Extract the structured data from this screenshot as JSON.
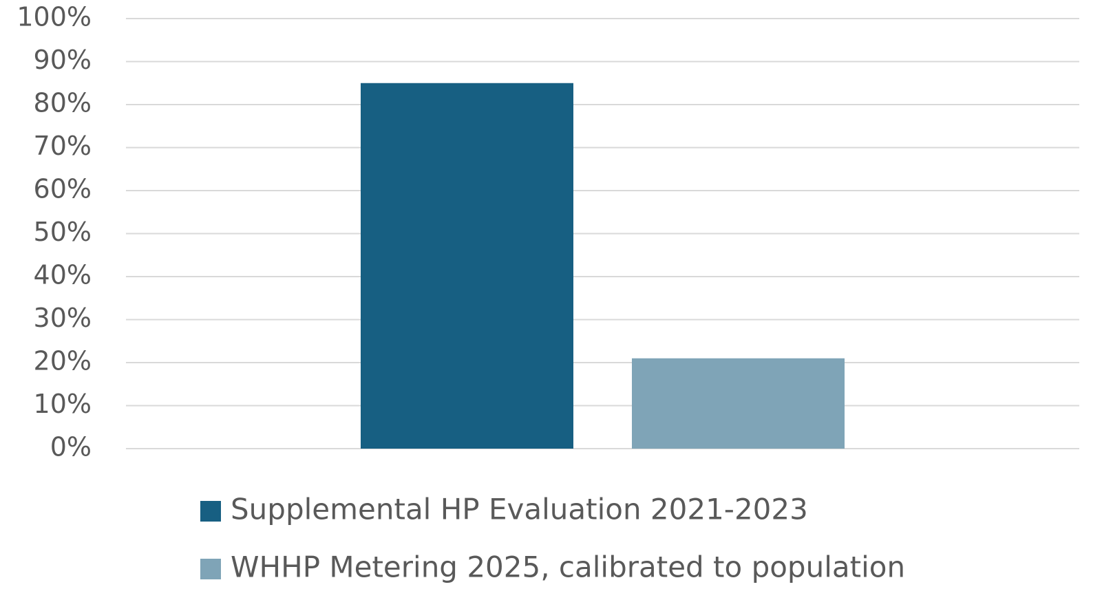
{
  "chart_data": {
    "type": "bar",
    "categories": [
      null
    ],
    "series": [
      {
        "name": "Supplemental HP Evaluation 2021-2023",
        "color": "#175f82",
        "values": [
          85
        ]
      },
      {
        "name": "WHHP Metering 2025, calibrated to population",
        "color": "#7fa4b7",
        "values": [
          21
        ]
      }
    ],
    "ylim": [
      0,
      100
    ],
    "yticks": [
      {
        "value": 0,
        "label": "0%"
      },
      {
        "value": 10,
        "label": "10%"
      },
      {
        "value": 20,
        "label": "20%"
      },
      {
        "value": 30,
        "label": "30%"
      },
      {
        "value": 40,
        "label": "40%"
      },
      {
        "value": 50,
        "label": "50%"
      },
      {
        "value": 60,
        "label": "60%"
      },
      {
        "value": 70,
        "label": "70%"
      },
      {
        "value": 80,
        "label": "80%"
      },
      {
        "value": 90,
        "label": "90%"
      },
      {
        "value": 100,
        "label": "100%"
      }
    ],
    "grid": true,
    "legend": "bottom"
  }
}
